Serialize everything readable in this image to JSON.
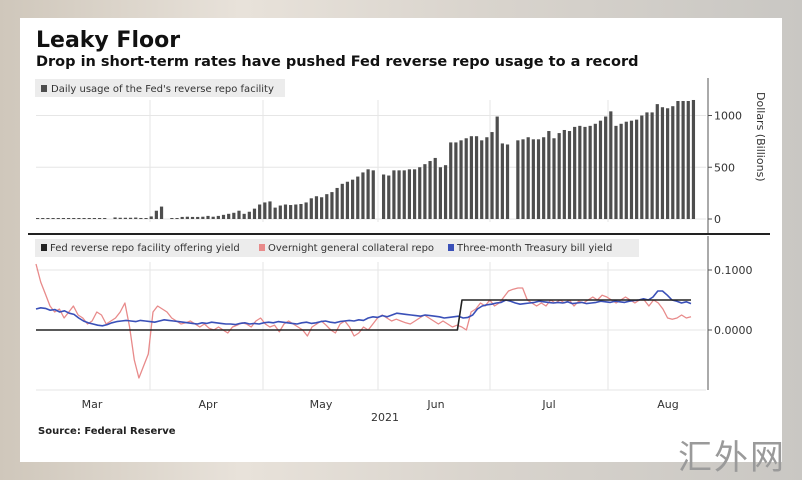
{
  "title": "Leaky Floor",
  "subtitle": "Drop in short-term rates have pushed Fed reverse repo usage to a record",
  "source": "Source: Federal Reserve",
  "watermark": "汇外网",
  "colors": {
    "bars": "#4d4d4d",
    "fed_rrp_yield": "#222222",
    "overnight_gc_repo": "#e88a8a",
    "tbill_yield": "#3a50b8",
    "grid": "#e6e6e6",
    "legend_bg": "#ececec"
  },
  "chart_data": [
    {
      "type": "bar",
      "title": "Daily usage of the Fed's reverse repo facility",
      "legend": [
        "Daily usage of the Fed's reverse repo facility"
      ],
      "legend_position": "top-left",
      "ylabel": "Dollars (Billions)",
      "ylim": [
        0,
        1300
      ],
      "yticks": [
        0,
        500,
        1000
      ],
      "ytick_labels": [
        "0",
        "500",
        "1000"
      ],
      "grid": true,
      "values": [
        5,
        5,
        5,
        5,
        5,
        5,
        5,
        5,
        5,
        8,
        5,
        5,
        3,
        5,
        null,
        15,
        12,
        12,
        12,
        14,
        10,
        8,
        25,
        80,
        120,
        null,
        5,
        3,
        20,
        22,
        20,
        20,
        22,
        30,
        22,
        30,
        40,
        50,
        60,
        80,
        50,
        70,
        100,
        140,
        160,
        170,
        110,
        130,
        140,
        135,
        140,
        145,
        160,
        200,
        220,
        210,
        240,
        260,
        300,
        340,
        360,
        380,
        410,
        450,
        480,
        470,
        null,
        430,
        420,
        470,
        470,
        470,
        480,
        480,
        500,
        530,
        560,
        590,
        500,
        520,
        740,
        740,
        760,
        780,
        800,
        800,
        760,
        790,
        840,
        990,
        730,
        720,
        null,
        760,
        770,
        790,
        770,
        770,
        790,
        850,
        780,
        830,
        860,
        850,
        890,
        900,
        890,
        900,
        920,
        950,
        990,
        1040,
        900,
        920,
        940,
        950,
        960,
        1000,
        1030,
        1030,
        1110,
        1080,
        1070,
        1090,
        1140,
        1140,
        1140,
        1150
      ]
    },
    {
      "type": "line",
      "legend_position": "top-left",
      "xlabel": "2021",
      "x_tick_labels": [
        "Mar",
        "Apr",
        "May",
        "Jun",
        "Jul",
        "Aug"
      ],
      "ylim": [
        -0.1,
        0.12
      ],
      "yticks": [
        0.0,
        0.1
      ],
      "ytick_labels": [
        "0.0000",
        "0.1000"
      ],
      "grid": true,
      "series": [
        {
          "name": "Fed reverse repo facility offering yield",
          "values": [
            0,
            0,
            0,
            0,
            0,
            0,
            0,
            0,
            0,
            0,
            0,
            0,
            0,
            0,
            0,
            0,
            0,
            0,
            0,
            0,
            0,
            0,
            0,
            0,
            0,
            0,
            0,
            0,
            0,
            0,
            0,
            0,
            0,
            0,
            0,
            0,
            0,
            0,
            0,
            0,
            0,
            0,
            0,
            0,
            0,
            0,
            0,
            0,
            0,
            0,
            0,
            0,
            0,
            0,
            0,
            0,
            0,
            0,
            0,
            0,
            0,
            0,
            0,
            0,
            0,
            0,
            0,
            0,
            0,
            0,
            0,
            0,
            0,
            0,
            0,
            0,
            0,
            0,
            0,
            0,
            0,
            0,
            0,
            0,
            0,
            0,
            0,
            0,
            0,
            0,
            0,
            0,
            0,
            0.05,
            0.05,
            0.05,
            0.05,
            0.05,
            0.05,
            0.05,
            0.05,
            0.05,
            0.05,
            0.05,
            0.05,
            0.05,
            0.05,
            0.05,
            0.05,
            0.05,
            0.05,
            0.05,
            0.05,
            0.05,
            0.05,
            0.05,
            0.05,
            0.05,
            0.05,
            0.05,
            0.05,
            0.05,
            0.05,
            0.05,
            0.05,
            0.05,
            0.05,
            0.05,
            0.05,
            0.05,
            0.05,
            0.05,
            0.05,
            0.05,
            0.05,
            0.05,
            0.05,
            0.05,
            0.05,
            0.05,
            0.05,
            0.05,
            0.05,
            0.05
          ]
        },
        {
          "name": "Overnight general collateral repo",
          "values": [
            0.11,
            0.08,
            0.06,
            0.04,
            0.03,
            0.035,
            0.02,
            0.03,
            0.04,
            0.025,
            0.02,
            0.01,
            0.015,
            0.03,
            0.025,
            0.01,
            0.015,
            0.02,
            0.03,
            0.045,
            0.005,
            -0.05,
            -0.08,
            -0.06,
            -0.04,
            0.03,
            0.04,
            0.035,
            0.03,
            0.02,
            0.015,
            0.01,
            0.012,
            0.015,
            0.01,
            0.005,
            0.01,
            0.003,
            0.0,
            0.005,
            0.0,
            -0.005,
            0.005,
            0.008,
            0.012,
            0.01,
            0.005,
            0.015,
            0.02,
            0.01,
            0.005,
            0.008,
            -0.003,
            0.01,
            0.015,
            0.01,
            0.005,
            0.0,
            -0.01,
            0.005,
            0.01,
            0.015,
            0.008,
            0.0,
            -0.005,
            0.01,
            0.015,
            0.005,
            -0.01,
            -0.005,
            0.005,
            0.0,
            0.01,
            0.02,
            0.025,
            0.02,
            0.015,
            0.018,
            0.015,
            0.012,
            0.01,
            0.015,
            0.02,
            0.025,
            0.02,
            0.015,
            0.01,
            0.015,
            0.01,
            0.005,
            0.008,
            0.005,
            0.0,
            0.03,
            0.035,
            0.045,
            0.04,
            0.05,
            0.04,
            0.045,
            0.055,
            0.065,
            0.068,
            0.07,
            0.07,
            0.05,
            0.045,
            0.04,
            0.045,
            0.04,
            0.05,
            0.045,
            0.05,
            0.045,
            0.05,
            0.04,
            0.048,
            0.045,
            0.05,
            0.055,
            0.05,
            0.058,
            0.055,
            0.05,
            0.045,
            0.05,
            0.055,
            0.05,
            0.045,
            0.05,
            0.05,
            0.04,
            0.05,
            0.045,
            0.035,
            0.02,
            0.018,
            0.02,
            0.025,
            0.02,
            0.022
          ]
        },
        {
          "name": "Three-month Treasury bill yield",
          "values": [
            0.035,
            0.037,
            0.036,
            0.033,
            0.034,
            0.03,
            0.032,
            0.028,
            0.026,
            0.02,
            0.015,
            0.012,
            0.01,
            0.008,
            0.007,
            0.009,
            0.012,
            0.014,
            0.015,
            0.016,
            0.015,
            0.014,
            0.016,
            0.015,
            0.014,
            0.013,
            0.015,
            0.017,
            0.016,
            0.015,
            0.014,
            0.013,
            0.012,
            0.011,
            0.01,
            0.012,
            0.011,
            0.013,
            0.012,
            0.011,
            0.01,
            0.01,
            0.009,
            0.011,
            0.012,
            0.01,
            0.011,
            0.01,
            0.012,
            0.013,
            0.012,
            0.014,
            0.013,
            0.012,
            0.011,
            0.01,
            0.012,
            0.013,
            0.011,
            0.012,
            0.014,
            0.015,
            0.013,
            0.012,
            0.014,
            0.015,
            0.016,
            0.015,
            0.017,
            0.016,
            0.02,
            0.022,
            0.021,
            0.024,
            0.022,
            0.025,
            0.028,
            0.027,
            0.026,
            0.025,
            0.024,
            0.023,
            0.025,
            0.024,
            0.023,
            0.022,
            0.02,
            0.021,
            0.022,
            0.023,
            0.02,
            0.021,
            0.025,
            0.035,
            0.04,
            0.042,
            0.043,
            0.045,
            0.046,
            0.05,
            0.048,
            0.045,
            0.043,
            0.044,
            0.045,
            0.046,
            0.048,
            0.047,
            0.046,
            0.045,
            0.046,
            0.045,
            0.047,
            0.044,
            0.045,
            0.046,
            0.044,
            0.045,
            0.046,
            0.048,
            0.047,
            0.046,
            0.048,
            0.047,
            0.046,
            0.048,
            0.049,
            0.05,
            0.052,
            0.05,
            0.055,
            0.065,
            0.065,
            0.058,
            0.05,
            0.048,
            0.045,
            0.047,
            0.044
          ]
        }
      ]
    }
  ]
}
